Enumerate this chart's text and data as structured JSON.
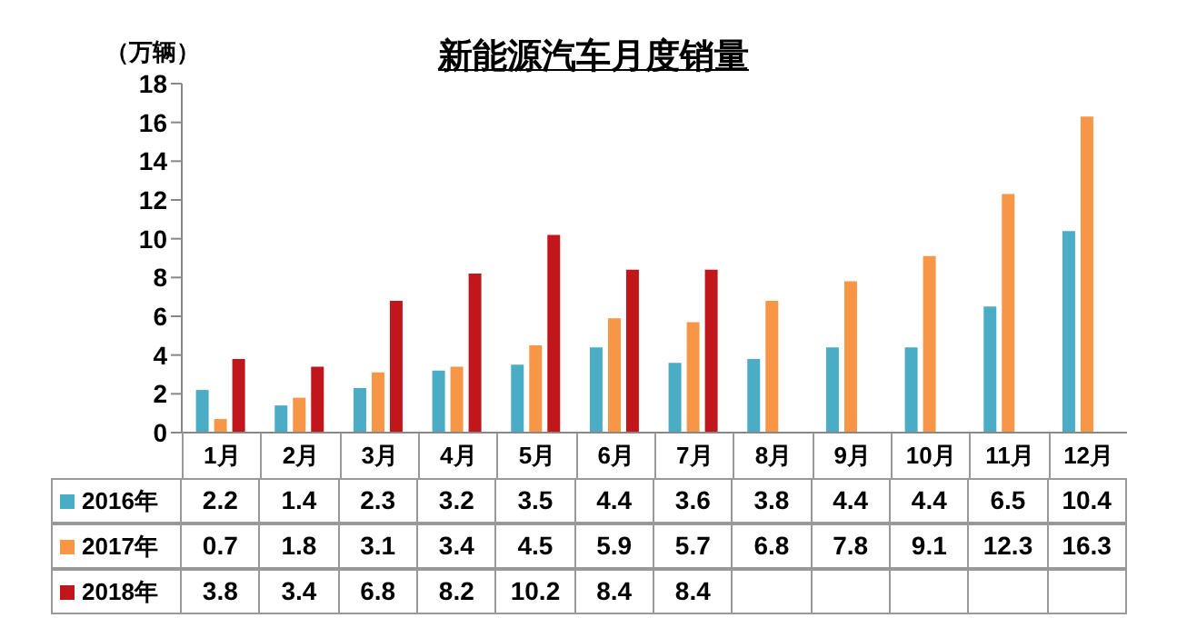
{
  "chart_data": {
    "type": "bar",
    "title": "新能源汽车月度销量",
    "ylabel": "（万辆）",
    "categories": [
      "1月",
      "2月",
      "3月",
      "4月",
      "5月",
      "6月",
      "7月",
      "8月",
      "9月",
      "10月",
      "11月",
      "12月"
    ],
    "series": [
      {
        "name": "2016年",
        "color": "#4bacc6",
        "values": [
          2.2,
          1.4,
          2.3,
          3.2,
          3.5,
          4.4,
          3.6,
          3.8,
          4.4,
          4.4,
          6.5,
          10.4
        ]
      },
      {
        "name": "2017年",
        "color": "#f79646",
        "values": [
          0.7,
          1.8,
          3.1,
          3.4,
          4.5,
          5.9,
          5.7,
          6.8,
          7.8,
          9.1,
          12.3,
          16.3
        ]
      },
      {
        "name": "2018年",
        "color": "#c0161c",
        "values": [
          3.8,
          3.4,
          6.8,
          8.2,
          10.2,
          8.4,
          8.4,
          null,
          null,
          null,
          null,
          null
        ]
      }
    ],
    "ylim": [
      0,
      18
    ],
    "yticks": [
      0,
      2,
      4,
      6,
      8,
      10,
      12,
      14,
      16,
      18
    ],
    "grid": false,
    "legend": "bottom",
    "data_labels": true
  }
}
